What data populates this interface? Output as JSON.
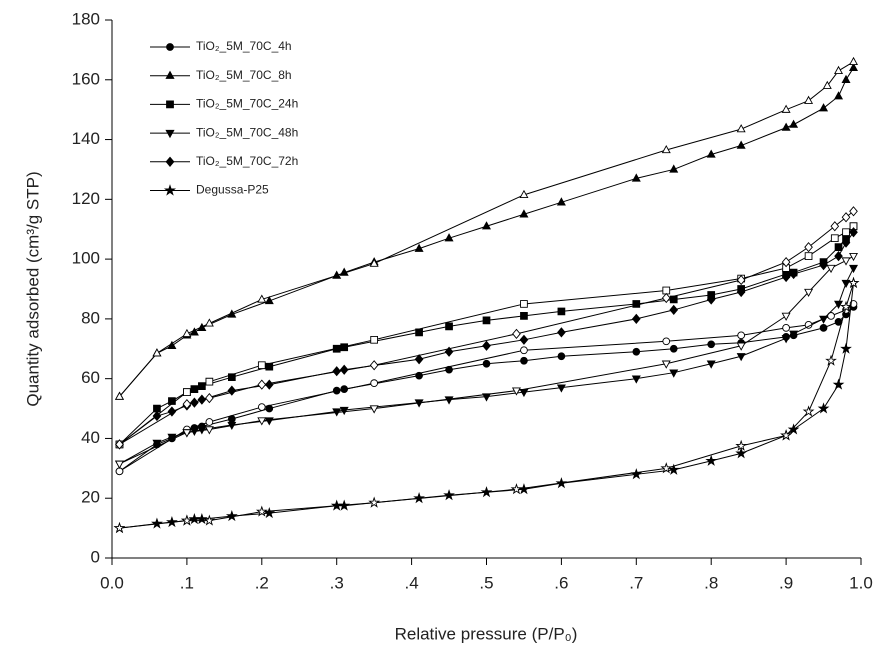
{
  "chart_data": {
    "type": "line",
    "x_label": "Relative pressure (P/P₀)",
    "y_label": "Quantity adsorbed (cm³/g STP)",
    "xlim": [
      0,
      1
    ],
    "ylim": [
      0,
      180
    ],
    "xticks": [
      {
        "value": 0,
        "label": "0.0"
      },
      {
        "value": 0.1,
        "label": ".1"
      },
      {
        "value": 0.2,
        "label": ".2"
      },
      {
        "value": 0.3,
        "label": ".3"
      },
      {
        "value": 0.4,
        "label": ".4"
      },
      {
        "value": 0.5,
        "label": ".5"
      },
      {
        "value": 0.6,
        "label": ".6"
      },
      {
        "value": 0.7,
        "label": ".7"
      },
      {
        "value": 0.8,
        "label": ".8"
      },
      {
        "value": 0.9,
        "label": ".9"
      },
      {
        "value": 1,
        "label": "1.0"
      }
    ],
    "yticks": [
      0,
      20,
      40,
      60,
      80,
      100,
      120,
      140,
      160,
      180
    ],
    "legend": "upper left",
    "series": [
      {
        "name": "TiO₂_5M_70C_4h",
        "color": "#000000",
        "marker": "circle",
        "x": [
          0.01,
          0.06,
          0.08,
          0.1,
          0.11,
          0.12,
          0.16,
          0.21,
          0.3,
          0.31,
          0.41,
          0.45,
          0.5,
          0.55,
          0.6,
          0.7,
          0.75,
          0.8,
          0.84,
          0.9,
          0.91,
          0.95,
          0.97,
          0.98,
          0.99
        ],
        "values": [
          29,
          38,
          40,
          42.5,
          43.5,
          44,
          46.5,
          50,
          56,
          56.5,
          61,
          63,
          65,
          66,
          67.5,
          69,
          70,
          71.5,
          72,
          74,
          74.5,
          77,
          79,
          81.5,
          84
        ],
        "desorption": {
          "x": [
            0.99,
            0.98,
            0.96,
            0.93,
            0.9,
            0.84,
            0.74,
            0.55,
            0.35,
            0.2,
            0.13,
            0.1,
            0.01
          ],
          "values": [
            85,
            83,
            81,
            78,
            77,
            74.5,
            72.5,
            69.5,
            58.5,
            50.5,
            45.5,
            43,
            29
          ]
        }
      },
      {
        "name": "TiO₂_5M_70C_8h",
        "color": "#000000",
        "marker": "triangle-up",
        "x": [
          0.01,
          0.06,
          0.08,
          0.1,
          0.11,
          0.12,
          0.16,
          0.21,
          0.3,
          0.31,
          0.35,
          0.41,
          0.45,
          0.5,
          0.55,
          0.6,
          0.7,
          0.75,
          0.8,
          0.84,
          0.9,
          0.91,
          0.95,
          0.97,
          0.98,
          0.99
        ],
        "values": [
          54,
          68.5,
          71,
          74.5,
          75.5,
          77,
          81.5,
          86,
          94.5,
          95.5,
          99,
          103.5,
          107,
          111,
          115,
          119,
          127,
          130,
          135,
          138,
          144,
          145,
          150.5,
          154.5,
          160,
          164
        ],
        "desorption": {
          "x": [
            0.99,
            0.97,
            0.955,
            0.93,
            0.9,
            0.84,
            0.74,
            0.55,
            0.35,
            0.2,
            0.13,
            0.1,
            0.06,
            0.01
          ],
          "values": [
            166,
            163,
            158,
            153,
            150,
            143.5,
            136.5,
            121.5,
            98.5,
            86.5,
            78.5,
            75,
            68.5,
            54
          ]
        }
      },
      {
        "name": "TiO₂_5M_70C_24h",
        "color": "#000000",
        "marker": "square",
        "x": [
          0.01,
          0.06,
          0.08,
          0.1,
          0.11,
          0.12,
          0.16,
          0.21,
          0.3,
          0.31,
          0.41,
          0.45,
          0.5,
          0.55,
          0.6,
          0.7,
          0.75,
          0.8,
          0.84,
          0.9,
          0.91,
          0.95,
          0.97,
          0.98,
          0.99
        ],
        "values": [
          38,
          50,
          52.5,
          55.5,
          56.5,
          57.5,
          60.5,
          64,
          70,
          70.5,
          75.5,
          77.5,
          79.5,
          81,
          82.5,
          85,
          86.5,
          88,
          90,
          95,
          95.5,
          99,
          104,
          107,
          111
        ],
        "desorption": {
          "x": [
            0.99,
            0.98,
            0.965,
            0.93,
            0.9,
            0.84,
            0.74,
            0.55,
            0.35,
            0.2,
            0.13,
            0.1,
            0.01
          ],
          "values": [
            111,
            109,
            107,
            101,
            97,
            93.5,
            89.5,
            85,
            73,
            64.5,
            59,
            55.5,
            38
          ]
        }
      },
      {
        "name": "TiO₂_5M_70C_48h",
        "color": "#000000",
        "marker": "triangle-down",
        "x": [
          0.01,
          0.06,
          0.08,
          0.1,
          0.11,
          0.12,
          0.16,
          0.21,
          0.3,
          0.31,
          0.41,
          0.45,
          0.5,
          0.55,
          0.6,
          0.7,
          0.75,
          0.8,
          0.84,
          0.9,
          0.91,
          0.95,
          0.97,
          0.98,
          0.99
        ],
        "values": [
          31.5,
          38.5,
          40.5,
          42,
          42.5,
          43,
          44.5,
          46,
          49,
          49.5,
          52,
          53,
          54,
          55.5,
          57,
          60,
          62,
          65,
          67.5,
          73.5,
          75,
          80,
          85,
          92,
          97
        ],
        "desorption": {
          "x": [
            0.99,
            0.98,
            0.96,
            0.93,
            0.9,
            0.84,
            0.74,
            0.54,
            0.35,
            0.2,
            0.13,
            0.1,
            0.01
          ],
          "values": [
            101,
            99.5,
            97,
            89,
            81,
            71,
            65,
            56,
            50,
            46,
            43,
            42,
            31.5
          ]
        }
      },
      {
        "name": "TiO₂_5M_70C_72h",
        "color": "#000000",
        "marker": "diamond",
        "x": [
          0.01,
          0.06,
          0.08,
          0.1,
          0.11,
          0.12,
          0.16,
          0.21,
          0.3,
          0.31,
          0.41,
          0.45,
          0.5,
          0.55,
          0.6,
          0.7,
          0.75,
          0.8,
          0.84,
          0.9,
          0.91,
          0.95,
          0.97,
          0.98,
          0.99
        ],
        "values": [
          38,
          47.5,
          49,
          51,
          52,
          53,
          56,
          58,
          62.5,
          63,
          66.5,
          69,
          71,
          73,
          75.5,
          80,
          83,
          86.5,
          89,
          94,
          95,
          98,
          101,
          105.5,
          109
        ],
        "desorption": {
          "x": [
            0.99,
            0.98,
            0.965,
            0.93,
            0.9,
            0.84,
            0.74,
            0.54,
            0.35,
            0.2,
            0.13,
            0.1,
            0.01
          ],
          "values": [
            116,
            114,
            111,
            104,
            99,
            93,
            87,
            75,
            64.5,
            58,
            53.5,
            51.5,
            38
          ]
        }
      },
      {
        "name": "Degussa-P25",
        "color": "#000000",
        "marker": "star",
        "x": [
          0.01,
          0.06,
          0.08,
          0.1,
          0.11,
          0.12,
          0.16,
          0.21,
          0.3,
          0.31,
          0.41,
          0.45,
          0.5,
          0.55,
          0.6,
          0.7,
          0.75,
          0.8,
          0.84,
          0.9,
          0.91,
          0.95,
          0.97,
          0.98,
          0.99
        ],
        "values": [
          10,
          11.5,
          12,
          12.5,
          13,
          13,
          14,
          15,
          17.5,
          17.5,
          20,
          21,
          22,
          23,
          25,
          28,
          29.5,
          32.5,
          35,
          41,
          43,
          50,
          58,
          70,
          92
        ],
        "desorption": {
          "x": [
            0.99,
            0.98,
            0.96,
            0.93,
            0.9,
            0.84,
            0.74,
            0.54,
            0.35,
            0.2,
            0.13,
            0.1,
            0.01
          ],
          "values": [
            92,
            84,
            66,
            49,
            41,
            37.5,
            30,
            23,
            18.5,
            15.5,
            12.5,
            12.5,
            10
          ]
        }
      }
    ]
  }
}
